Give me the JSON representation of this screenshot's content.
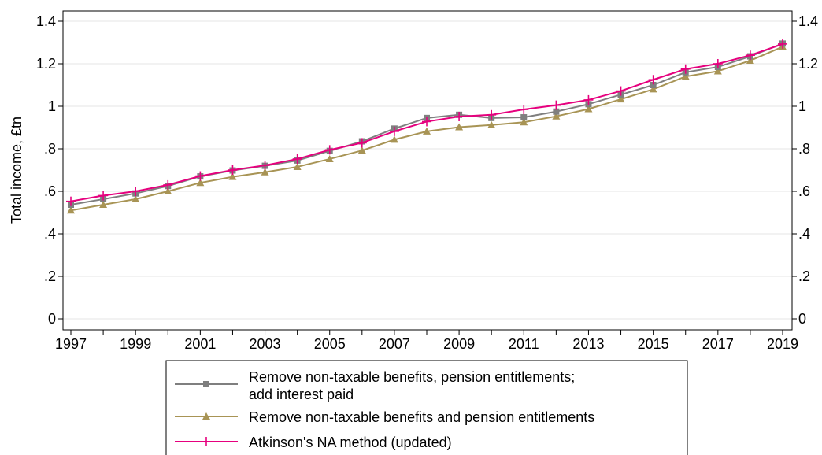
{
  "chart_data": {
    "type": "line",
    "title": "",
    "xlabel": "",
    "ylabel": "Total income, £tn",
    "x": [
      1997,
      1998,
      1999,
      2000,
      2001,
      2002,
      2003,
      2004,
      2005,
      2006,
      2007,
      2008,
      2009,
      2010,
      2011,
      2012,
      2013,
      2014,
      2015,
      2016,
      2017,
      2018,
      2019
    ],
    "x_ticks": [
      "1997",
      "1999",
      "2001",
      "2003",
      "2005",
      "2007",
      "2009",
      "2011",
      "2013",
      "2015",
      "2017",
      "2019"
    ],
    "y_ticks": [
      "0",
      ".2",
      ".4",
      ".6",
      ".8",
      "1",
      "1.2",
      "1.4"
    ],
    "ylim": [
      0,
      1.45
    ],
    "xlim": [
      1997,
      2019
    ],
    "grid": true,
    "legend_position": "bottom",
    "series": [
      {
        "name": "Remove non-taxable benefits, pension entitlements; add interest paid",
        "color": "#7f7f7f",
        "marker": "square",
        "values": [
          0.537,
          0.563,
          0.59,
          0.625,
          0.67,
          0.698,
          0.72,
          0.745,
          0.79,
          0.835,
          0.895,
          0.945,
          0.96,
          0.945,
          0.948,
          0.975,
          1.01,
          1.055,
          1.1,
          1.16,
          1.185,
          1.235,
          1.295
        ]
      },
      {
        "name": "Remove non-taxable benefits and pension entitlements",
        "color": "#a89455",
        "marker": "triangle",
        "values": [
          0.51,
          0.537,
          0.563,
          0.6,
          0.64,
          0.668,
          0.69,
          0.715,
          0.752,
          0.792,
          0.843,
          0.882,
          0.902,
          0.912,
          0.925,
          0.953,
          0.987,
          1.033,
          1.08,
          1.14,
          1.165,
          1.215,
          1.28
        ]
      },
      {
        "name": "Atkinson's NA method (updated)",
        "color": "#e6007e",
        "marker": "plus",
        "values": [
          0.553,
          0.58,
          0.6,
          0.63,
          0.672,
          0.7,
          0.722,
          0.752,
          0.795,
          0.828,
          0.882,
          0.928,
          0.952,
          0.96,
          0.985,
          1.005,
          1.03,
          1.072,
          1.125,
          1.175,
          1.2,
          1.24,
          1.293
        ]
      }
    ],
    "legend_labels": [
      [
        "Remove non-taxable benefits, pension entitlements;",
        " add interest paid"
      ],
      [
        "Remove non-taxable benefits and pension entitlements"
      ],
      [
        "Atkinson's NA method (updated)"
      ]
    ]
  }
}
